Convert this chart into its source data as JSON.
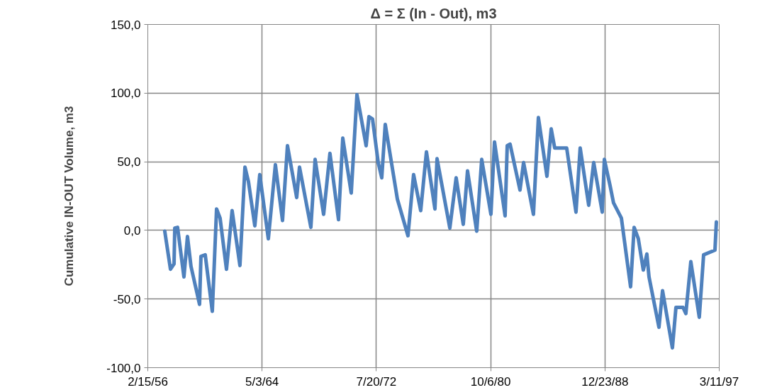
{
  "chart_data": {
    "type": "line",
    "title": "Δ = Σ (In - Out), m3",
    "ylabel": "Cumulative IN-OUT Volume, m3",
    "xlim": [
      "1956-02-15",
      "1997-03-11"
    ],
    "xticks": [
      {
        "value": "1956-02-15",
        "label": "2/15/56"
      },
      {
        "value": "1964-05-03",
        "label": "5/3/64"
      },
      {
        "value": "1972-07-20",
        "label": "7/20/72"
      },
      {
        "value": "1980-10-06",
        "label": "10/6/80"
      },
      {
        "value": "1988-12-23",
        "label": "12/23/88"
      },
      {
        "value": "1997-03-11",
        "label": "3/11/97"
      }
    ],
    "ylim": [
      -100,
      150
    ],
    "yticks": [
      {
        "value": -100,
        "label": "-100,0"
      },
      {
        "value": -50,
        "label": "-50,0"
      },
      {
        "value": 0,
        "label": "0,0"
      },
      {
        "value": 50,
        "label": "50,0"
      },
      {
        "value": 100,
        "label": "100,0"
      },
      {
        "value": 150,
        "label": "150,0"
      }
    ],
    "grid": true,
    "marker": "none",
    "line_style": "solid",
    "series": [
      {
        "color": "#4f81bd",
        "x": [
          "1957-05-05",
          "1957-10-02",
          "1958-01-04",
          "1958-01-23",
          "1958-04-06",
          "1958-09-20",
          "1958-12-22",
          "1959-03-24",
          "1959-11-04",
          "1959-12-11",
          "1960-04-01",
          "1960-10-04",
          "1961-01-24",
          "1961-04-26",
          "1961-10-11",
          "1962-03-08",
          "1962-09-29",
          "1963-02-08",
          "1963-05-10",
          "1963-10-25",
          "1964-03-03",
          "1964-10-14",
          "1965-04-17",
          "1965-10-21",
          "1966-02-28",
          "1966-10-28",
          "1967-01-10",
          "1967-11-04",
          "1968-02-24",
          "1968-10-04",
          "1969-03-19",
          "1969-10-30",
          "1970-02-19",
          "1970-09-29",
          "1971-02-26",
          "1971-10-25",
          "1972-01-08",
          "1972-04-10",
          "1972-09-06",
          "1972-12-08",
          "1973-03-10",
          "1974-01-22",
          "1974-10-27",
          "1975-03-24",
          "1975-09-27",
          "1976-02-24",
          "1976-10-04",
          "1976-11-29",
          "1977-10-30",
          "1978-04-14",
          "1978-10-18",
          "1979-02-07",
          "1979-10-06",
          "1980-02-14",
          "1980-10-13",
          "1981-01-15",
          "1981-10-20",
          "1981-12-15",
          "1982-02-28",
          "1982-11-15",
          "1983-02-17",
          "1983-11-03",
          "1984-03-12",
          "1984-10-22",
          "1985-02-12",
          "1985-05-14",
          "1986-03-25",
          "1986-11-24",
          "1987-03-14",
          "1987-10-24",
          "1988-03-03",
          "1988-10-13",
          "1988-12-08",
          "1989-05-05",
          "1989-08-06",
          "1990-02-28",
          "1990-10-27",
          "1991-01-28",
          "1991-05-18",
          "1991-09-26",
          "1991-12-28",
          "1992-02-23",
          "1992-11-10",
          "1993-02-12",
          "1993-10-29",
          "1994-01-30",
          "1994-08-03",
          "1994-10-17",
          "1995-02-25",
          "1995-10-05",
          "1996-01-26",
          "1996-11-19",
          "1996-12-26"
        ],
        "values": [
          -0.6,
          -28.3,
          -24.4,
          1.7,
          2.2,
          -33.9,
          -4.4,
          -26.1,
          -53.9,
          -18.9,
          -17.8,
          -58.9,
          15.6,
          8.9,
          -28.3,
          14.4,
          -25.6,
          46.1,
          35.6,
          3.3,
          40.6,
          -6.1,
          47.8,
          7.2,
          61.7,
          23.9,
          46.1,
          2.2,
          51.7,
          11.7,
          56.1,
          7.8,
          67.2,
          27.2,
          98.9,
          61.7,
          82.8,
          81.1,
          49.4,
          38.3,
          77.2,
          22.8,
          -3.9,
          40.6,
          14.4,
          57.2,
          15.6,
          52.2,
          1.7,
          38.3,
          4.4,
          43.3,
          -0.6,
          51.7,
          11.7,
          64.4,
          10.6,
          61.7,
          62.8,
          29.4,
          49.4,
          11.7,
          82.2,
          39.4,
          73.9,
          60.0,
          60.0,
          13.3,
          60.0,
          18.3,
          49.4,
          13.3,
          51.7,
          32.8,
          20.0,
          8.9,
          -41.1,
          2.2,
          -6.1,
          -28.9,
          -17.2,
          -33.9,
          -70.6,
          -43.9,
          -85.6,
          -56.1,
          -56.1,
          -60.6,
          -22.8,
          -63.3,
          -17.8,
          -14.4,
          6.1
        ]
      }
    ]
  }
}
